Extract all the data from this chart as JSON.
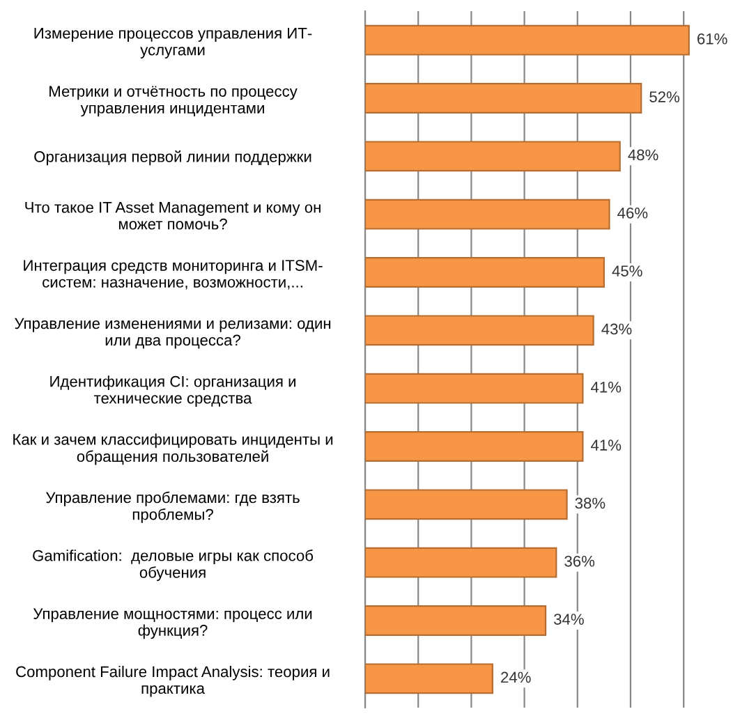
{
  "chart_data": {
    "type": "bar",
    "orientation": "horizontal",
    "categories": [
      "Измерение процессов управления ИТ-\nуслугами",
      "Метрики и отчётность по процессу\nуправления инцидентами",
      "Организация первой линии поддержки",
      "Что такое IT Asset Management и кому он\nможет помочь?",
      "Интеграция средств мониторинга и ITSM-\nсистем: назначение, возможности,...",
      "Управление изменениями и релизами: один\nили два процесса?",
      "Идентификация CI: организация и\nтехнические средства",
      "Как и зачем классифицировать инциденты и\nобращения пользователей",
      "Управление проблемами: где взять\nпроблемы?",
      "Gamification:  деловые игры как способ\nобучения",
      "Управление мощностями: процесс или\nфункция?",
      "Component Failure Impact Analysis: теория и\nпрактика"
    ],
    "values": [
      61,
      52,
      48,
      46,
      45,
      43,
      41,
      41,
      38,
      36,
      34,
      24
    ],
    "value_labels": [
      "61%",
      "52%",
      "48%",
      "46%",
      "45%",
      "43%",
      "41%",
      "41%",
      "38%",
      "36%",
      "34%",
      "24%"
    ],
    "color": "#f79646",
    "xticks": [
      {
        "value": 0,
        "label": null
      },
      {
        "value": 10,
        "label": null
      },
      {
        "value": 20,
        "label": null
      },
      {
        "value": 30,
        "label": null
      },
      {
        "value": 40,
        "label": null
      },
      {
        "value": 50,
        "label": null
      },
      {
        "value": 60,
        "label": null
      }
    ],
    "grid": "x",
    "tick_labels": "y"
  }
}
